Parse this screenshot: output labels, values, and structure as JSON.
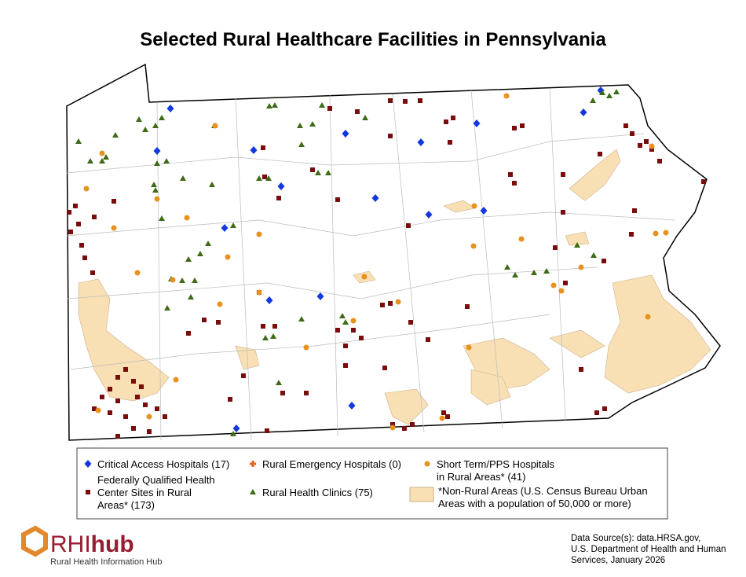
{
  "title": "Selected Rural Healthcare Facilities in Pennsylvania",
  "legend": {
    "items": [
      {
        "lines": [
          "Critical Access Hospitals (17)"
        ]
      },
      {
        "lines": [
          "Rural Emergency Hospitals (0)"
        ]
      },
      {
        "lines": [
          "Short Term/PPS Hospitals",
          "in Rural Areas* (41)"
        ]
      },
      {
        "lines": [
          "Federally Qualified Health",
          "Center Sites in Rural",
          "Areas* (173)"
        ]
      },
      {
        "lines": [
          "Rural Health Clinics (75)"
        ]
      },
      {
        "lines": [
          "*Non-Rural Areas (U.S. Census Bureau Urban",
          "Areas with a population of 50,000 or more)"
        ]
      }
    ]
  },
  "logo": {
    "brand_a": "RHI",
    "brand_b": "hub",
    "tagline": "Rural Health Information Hub"
  },
  "source": {
    "lines": [
      "Data Source(s): data.HRSA.gov,",
      "U.S. Department of Health and Human",
      "Services, January 2026"
    ]
  }
}
